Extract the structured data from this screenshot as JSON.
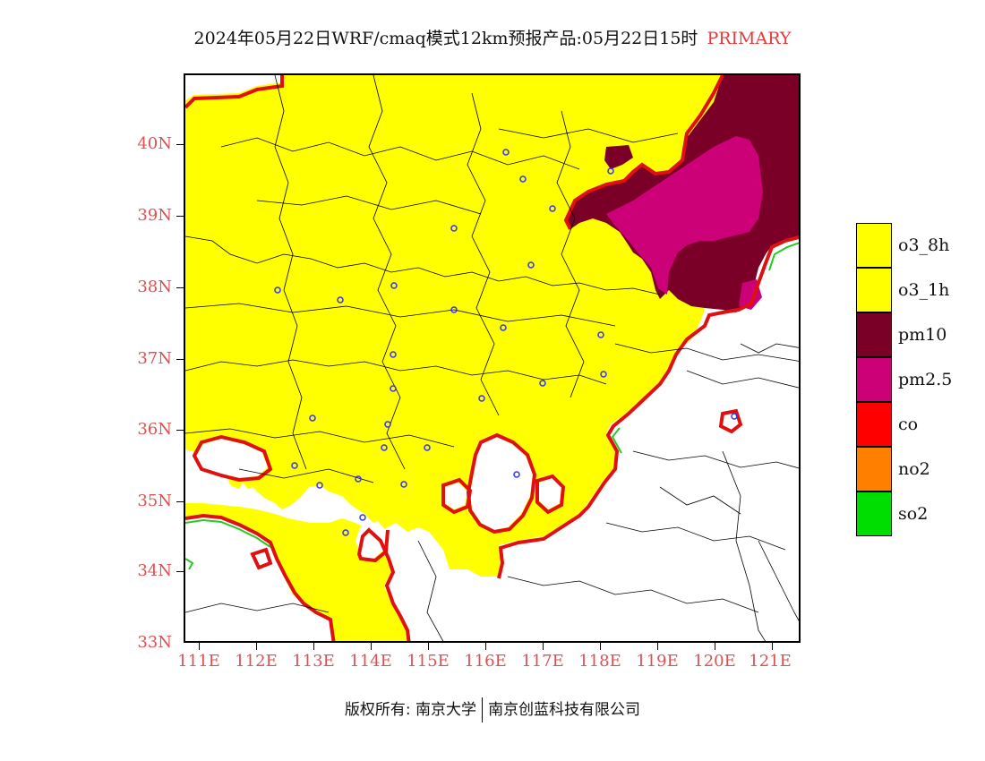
{
  "title": {
    "main": "2024年05月22日WRF/cmaq模式12km预报产品:05月22日15时",
    "tag": "PRIMARY",
    "tag_color": "#e63a3a"
  },
  "axes": {
    "y_labels": [
      "40N",
      "39N",
      "38N",
      "37N",
      "36N",
      "35N",
      "34N",
      "33N"
    ],
    "x_labels": [
      "111E",
      "112E",
      "113E",
      "114E",
      "115E",
      "116E",
      "117E",
      "118E",
      "119E",
      "120E",
      "121E"
    ],
    "label_color": "#e05050"
  },
  "legend": {
    "items": [
      {
        "label": "o3_8h",
        "color": "#ffff00"
      },
      {
        "label": "o3_1h",
        "color": "#ffff00"
      },
      {
        "label": "pm10",
        "color": "#7a0028"
      },
      {
        "label": "pm2.5",
        "color": "#cc0077"
      },
      {
        "label": "co",
        "color": "#ff0000"
      },
      {
        "label": "no2",
        "color": "#ff7f00"
      },
      {
        "label": "so2",
        "color": "#00dd00"
      }
    ]
  },
  "footer": {
    "left": "版权所有: 南京大学",
    "right": "南京创蓝科技有限公司"
  },
  "map_colors": {
    "yellow": "#ffff00",
    "pm10": "#7a0028",
    "pm25": "#cc0077",
    "red": "#e01010",
    "green": "#22cc22",
    "city_marker": "#3333ff"
  }
}
